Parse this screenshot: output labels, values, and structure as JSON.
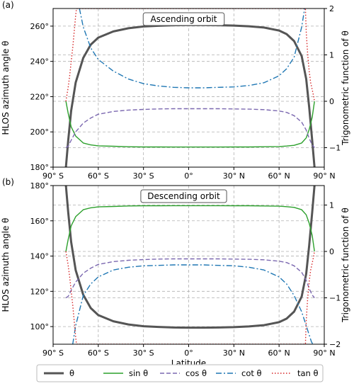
{
  "chart_data": [
    {
      "panel_label": "(a)",
      "type": "line",
      "title": "Ascending orbit",
      "xlabel": "",
      "ylabel": "HLOS azimuth angle θ",
      "y2label": "Trigonometric function of θ",
      "xlim": [
        -90,
        90
      ],
      "ylim": [
        180,
        270
      ],
      "y2lim": [
        -1.42,
        2.0
      ],
      "xticks": [
        -90,
        -60,
        -30,
        0,
        30,
        60,
        90
      ],
      "xticklabels": [
        "90° S",
        "60° S",
        "30° S",
        "0°",
        "30° N",
        "60° N",
        "90° N"
      ],
      "yticks": [
        180,
        200,
        220,
        240,
        260
      ],
      "yticklabels": [
        "180°",
        "200°",
        "220°",
        "240°",
        "260°"
      ],
      "y2ticks": [
        -1,
        0,
        1,
        2
      ],
      "y2ticklabels": [
        "−1",
        "0",
        "1",
        "2"
      ],
      "grid": true,
      "series": [
        {
          "name": "θ",
          "axis": "left",
          "x": [
            -81.5,
            -80,
            -78,
            -75,
            -70,
            -65,
            -60,
            -50,
            -40,
            -30,
            -20,
            -10,
            0,
            10,
            20,
            30,
            40,
            50,
            60,
            65,
            70,
            75,
            78,
            80,
            82,
            83.5
          ],
          "y": [
            180,
            195,
            212,
            228,
            242,
            249.5,
            253.5,
            257,
            258.8,
            259.8,
            260.2,
            260.5,
            260.6,
            260.6,
            260.5,
            260.3,
            259.9,
            259.2,
            257.5,
            255.5,
            251.5,
            243,
            230,
            214,
            195,
            180
          ]
        },
        {
          "name": "sin θ",
          "axis": "right",
          "x": [
            -81.5,
            -80,
            -78,
            -75,
            -70,
            -65,
            -60,
            -50,
            -40,
            -30,
            -20,
            -10,
            0,
            10,
            20,
            30,
            40,
            50,
            60,
            65,
            70,
            75,
            78,
            80,
            82,
            83.5
          ],
          "y": [
            0.0,
            -0.26,
            -0.55,
            -0.75,
            -0.9,
            -0.94,
            -0.96,
            -0.97,
            -0.98,
            -0.985,
            -0.985,
            -0.986,
            -0.986,
            -0.986,
            -0.986,
            -0.985,
            -0.985,
            -0.98,
            -0.975,
            -0.965,
            -0.95,
            -0.9,
            -0.79,
            -0.61,
            -0.34,
            0.0
          ]
        },
        {
          "name": "cos θ",
          "axis": "right",
          "x": [
            -81.5,
            -80,
            -78,
            -75,
            -70,
            -65,
            -60,
            -50,
            -40,
            -30,
            -20,
            -10,
            0,
            10,
            20,
            30,
            40,
            50,
            60,
            65,
            70,
            75,
            78,
            80,
            82,
            83.5
          ],
          "y": [
            -1.0,
            -0.97,
            -0.84,
            -0.66,
            -0.47,
            -0.36,
            -0.28,
            -0.22,
            -0.19,
            -0.175,
            -0.165,
            -0.16,
            -0.16,
            -0.16,
            -0.16,
            -0.165,
            -0.17,
            -0.18,
            -0.21,
            -0.24,
            -0.31,
            -0.45,
            -0.62,
            -0.8,
            -0.94,
            -1.0
          ]
        },
        {
          "name": "cot θ",
          "axis": "right",
          "x": [
            -72.5,
            -70,
            -65,
            -60,
            -50,
            -40,
            -30,
            -20,
            -10,
            0,
            10,
            20,
            30,
            40,
            50,
            60,
            65,
            70,
            75,
            77
          ],
          "y": [
            2.0,
            1.6,
            1.15,
            0.9,
            0.65,
            0.48,
            0.38,
            0.33,
            0.3,
            0.29,
            0.29,
            0.3,
            0.31,
            0.34,
            0.4,
            0.55,
            0.7,
            0.95,
            1.6,
            2.0
          ]
        },
        {
          "name": "tan θ",
          "axis": "right",
          "x": [
            -81.5,
            -80,
            -79,
            -78,
            -77,
            -76,
            -75,
            -74.5,
            77.5,
            78,
            79,
            80,
            81,
            82,
            83,
            83.5
          ],
          "y": [
            0.0,
            0.3,
            0.55,
            0.85,
            1.15,
            1.5,
            1.85,
            2.0,
            2.0,
            1.5,
            1.0,
            0.65,
            0.4,
            0.25,
            0.1,
            0.0
          ]
        }
      ]
    },
    {
      "panel_label": "(b)",
      "type": "line",
      "title": "Descending orbit",
      "xlabel": "Latitude",
      "ylabel": "HLOS azimuth angle θ",
      "y2label": "Trigonometric function of θ",
      "xlim": [
        -90,
        90
      ],
      "ylim": [
        90,
        180
      ],
      "y2lim": [
        -2.0,
        1.42
      ],
      "xticks": [
        -90,
        -60,
        -30,
        0,
        30,
        60,
        90
      ],
      "xticklabels": [
        "90° S",
        "60° S",
        "30° S",
        "0°",
        "30° N",
        "60° N",
        "90° N"
      ],
      "yticks": [
        100,
        120,
        140,
        160,
        180
      ],
      "yticklabels": [
        "100°",
        "120°",
        "140°",
        "160°",
        "180°"
      ],
      "y2ticks": [
        -2,
        -1,
        0,
        1
      ],
      "y2ticklabels": [
        "−2",
        "−1",
        "0",
        "1"
      ],
      "grid": true,
      "series": [
        {
          "name": "θ",
          "axis": "left",
          "x": [
            -81.5,
            -80,
            -78,
            -75,
            -70,
            -65,
            -60,
            -50,
            -40,
            -30,
            -20,
            -10,
            0,
            10,
            20,
            30,
            40,
            50,
            60,
            65,
            70,
            75,
            78,
            80,
            82,
            83.5
          ],
          "y": [
            180,
            165,
            148,
            132,
            118,
            110.5,
            106.5,
            103,
            101.2,
            100.2,
            99.8,
            99.5,
            99.4,
            99.4,
            99.5,
            99.7,
            100.1,
            100.8,
            102.5,
            104.5,
            108.5,
            117,
            130,
            146,
            165,
            180
          ]
        },
        {
          "name": "sin θ",
          "axis": "right",
          "x": [
            -81.5,
            -80,
            -78,
            -75,
            -70,
            -65,
            -60,
            -50,
            -40,
            -30,
            -20,
            -10,
            0,
            10,
            20,
            30,
            40,
            50,
            60,
            65,
            70,
            75,
            78,
            80,
            82,
            83.5
          ],
          "y": [
            0.0,
            0.26,
            0.55,
            0.75,
            0.9,
            0.94,
            0.96,
            0.97,
            0.98,
            0.985,
            0.985,
            0.986,
            0.986,
            0.986,
            0.986,
            0.985,
            0.985,
            0.98,
            0.975,
            0.965,
            0.95,
            0.9,
            0.79,
            0.61,
            0.34,
            0.0
          ]
        },
        {
          "name": "cos θ",
          "axis": "right",
          "x": [
            -81.5,
            -80,
            -78,
            -75,
            -70,
            -65,
            -60,
            -50,
            -40,
            -30,
            -20,
            -10,
            0,
            10,
            20,
            30,
            40,
            50,
            60,
            65,
            70,
            75,
            78,
            80,
            82,
            83.5
          ],
          "y": [
            -1.0,
            -0.97,
            -0.84,
            -0.66,
            -0.47,
            -0.36,
            -0.28,
            -0.22,
            -0.19,
            -0.175,
            -0.165,
            -0.16,
            -0.16,
            -0.16,
            -0.16,
            -0.165,
            -0.17,
            -0.18,
            -0.21,
            -0.24,
            -0.31,
            -0.45,
            -0.62,
            -0.8,
            -0.94,
            -1.0
          ]
        },
        {
          "name": "cot θ",
          "axis": "right",
          "x": [
            -77,
            -75,
            -70,
            -65,
            -60,
            -50,
            -40,
            -30,
            -20,
            -10,
            0,
            10,
            20,
            30,
            40,
            50,
            60,
            65,
            70,
            75,
            78,
            80,
            81.5,
            82.5
          ],
          "y": [
            -2.0,
            -1.6,
            -0.95,
            -0.7,
            -0.55,
            -0.4,
            -0.34,
            -0.31,
            -0.3,
            -0.29,
            -0.29,
            -0.29,
            -0.3,
            -0.31,
            -0.34,
            -0.4,
            -0.55,
            -0.7,
            -0.95,
            -1.3,
            -1.6,
            -1.8,
            -1.95,
            -2.0
          ]
        },
        {
          "name": "tan θ",
          "axis": "right",
          "x": [
            -81.5,
            -80,
            -79,
            -78,
            -77,
            -76,
            -75,
            -74.5,
            77.5,
            78,
            79,
            80,
            81,
            82,
            83,
            83.5
          ],
          "y": [
            0.0,
            -0.3,
            -0.55,
            -0.85,
            -1.15,
            -1.5,
            -1.85,
            -2.0,
            -2.0,
            -1.5,
            -1.0,
            -0.65,
            -0.4,
            -0.25,
            -0.1,
            0.0
          ]
        }
      ]
    }
  ],
  "legend": {
    "placement": "bottom",
    "items": [
      {
        "label": "θ",
        "color": "#555555",
        "dash": "solid",
        "width": 3
      },
      {
        "label": "sin θ",
        "color": "#2ca02c",
        "dash": "solid",
        "width": 1.4
      },
      {
        "label": "cos θ",
        "color": "#7b68b0",
        "dash": "dashed",
        "width": 1.4
      },
      {
        "label": "cot θ",
        "color": "#1f77b4",
        "dash": "dashdot",
        "width": 1.4
      },
      {
        "label": "tan θ",
        "color": "#d62728",
        "dash": "dotted",
        "width": 1.4
      }
    ]
  },
  "colors": {
    "theta": "#555555",
    "sin": "#2ca02c",
    "cos": "#7b68b0",
    "cot": "#1f77b4",
    "tan": "#d62728",
    "grid": "#b0b0b0"
  }
}
